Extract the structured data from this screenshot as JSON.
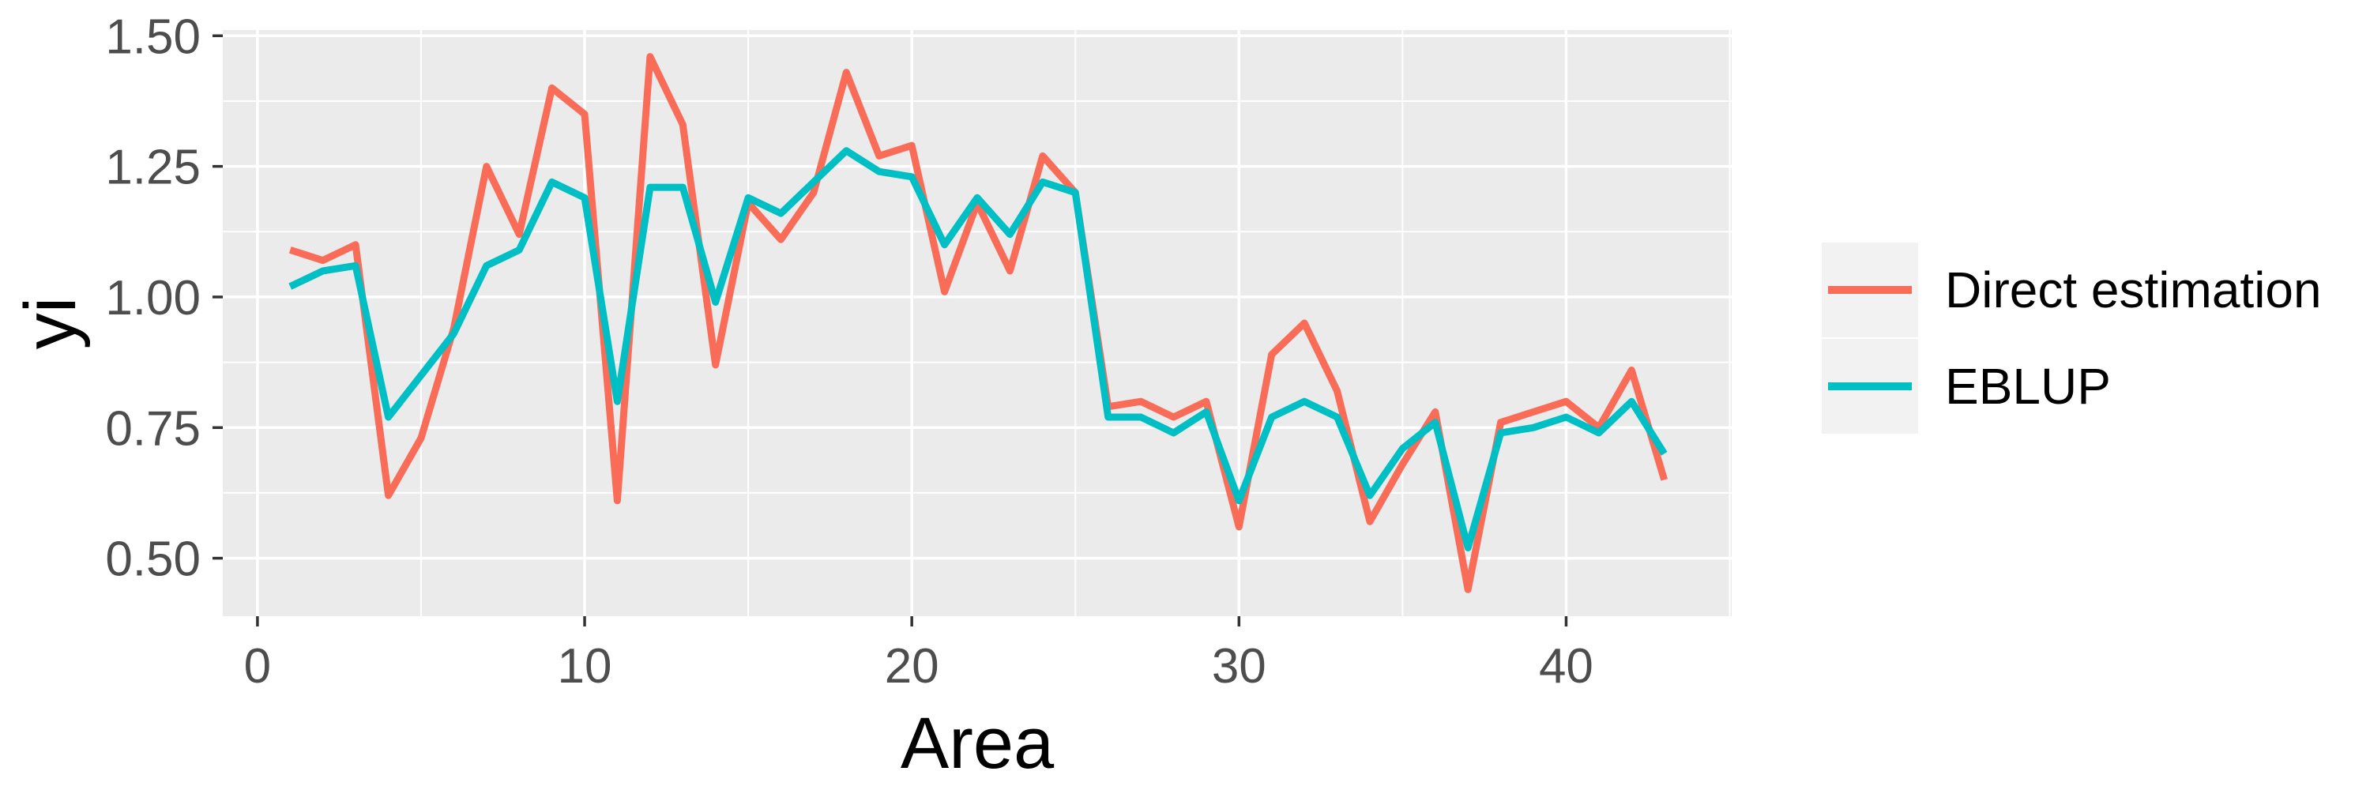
{
  "chart_data": {
    "type": "line",
    "title": "",
    "xlabel": "Area",
    "ylabel": "yi",
    "x": [
      1,
      2,
      3,
      4,
      5,
      6,
      7,
      8,
      9,
      10,
      11,
      12,
      13,
      14,
      15,
      16,
      17,
      18,
      19,
      20,
      21,
      22,
      23,
      24,
      25,
      26,
      27,
      28,
      29,
      30,
      31,
      32,
      33,
      34,
      35,
      36,
      37,
      38,
      39,
      40,
      41,
      42,
      43
    ],
    "series": [
      {
        "name": "Direct estimation",
        "color": "#F86C58",
        "values": [
          1.09,
          1.07,
          1.1,
          0.62,
          0.73,
          0.94,
          1.25,
          1.12,
          1.4,
          1.35,
          0.61,
          1.46,
          1.33,
          0.87,
          1.18,
          1.11,
          1.2,
          1.43,
          1.27,
          1.29,
          1.01,
          1.18,
          1.05,
          1.27,
          1.2,
          0.79,
          0.8,
          0.77,
          0.8,
          0.56,
          0.89,
          0.95,
          0.82,
          0.57,
          0.68,
          0.78,
          0.44,
          0.76,
          0.78,
          0.8,
          0.75,
          0.86,
          0.65
        ]
      },
      {
        "name": "EBLUP",
        "color": "#00BFC4",
        "values": [
          1.02,
          1.05,
          1.06,
          0.77,
          0.85,
          0.93,
          1.06,
          1.09,
          1.22,
          1.19,
          0.8,
          1.21,
          1.21,
          0.99,
          1.19,
          1.16,
          1.22,
          1.28,
          1.24,
          1.23,
          1.1,
          1.19,
          1.12,
          1.22,
          1.2,
          0.77,
          0.77,
          0.74,
          0.78,
          0.61,
          0.77,
          0.8,
          0.77,
          0.62,
          0.71,
          0.76,
          0.52,
          0.74,
          0.75,
          0.77,
          0.74,
          0.8,
          0.7
        ]
      }
    ],
    "xticks": [
      0,
      10,
      20,
      30,
      40
    ],
    "yticks": [
      0.5,
      0.75,
      1.0,
      1.25,
      1.5
    ],
    "ytick_labels": [
      "0.50",
      "0.75",
      "1.00",
      "1.25",
      "1.50"
    ],
    "x_minor": [
      5,
      15,
      25,
      35,
      45
    ],
    "y_minor": [
      0.625,
      0.875,
      1.125,
      1.375
    ],
    "xlim": [
      -1.06,
      45.06
    ],
    "ylim": [
      0.389,
      1.511
    ],
    "grid": "white major and minor gridlines on grey panel",
    "legend_position": "right"
  },
  "style": {
    "panel_bg": "#EBEBEB",
    "grid_color": "#FFFFFF",
    "tick_color": "#333333",
    "axis_text_color": "#4D4D4D",
    "title_text_color": "#000000",
    "legend_key_bg": "#F2F2F2",
    "legend_text_color": "#000000"
  }
}
